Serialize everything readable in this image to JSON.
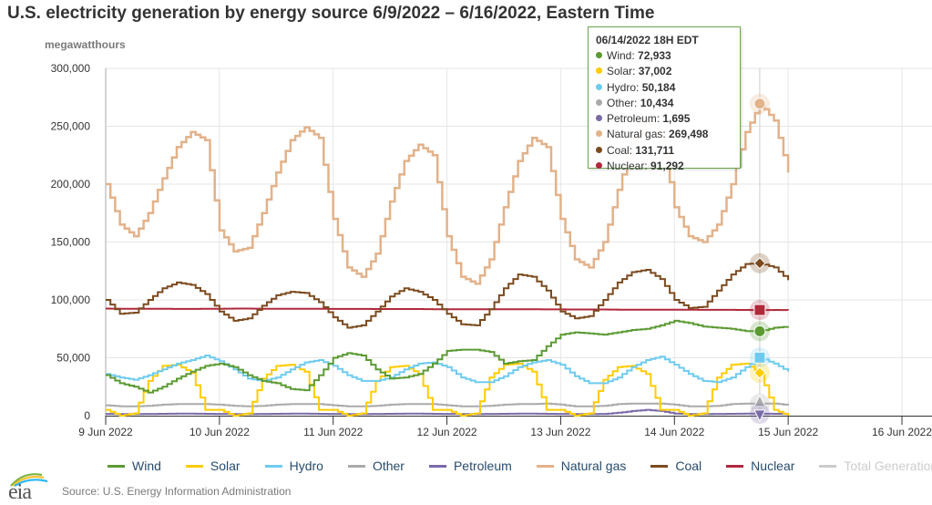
{
  "header": {
    "title": "U.S. electricity generation by energy source 6/9/2022 – 6/16/2022, Eastern Time",
    "unit_label": "megawatthours"
  },
  "tooltip": {
    "heading": "06/14/2022 18H EDT",
    "rows": [
      {
        "label": "Wind",
        "value": "72,933",
        "color": "#5b9a33"
      },
      {
        "label": "Solar",
        "value": "37,002",
        "color": "#ffcc00"
      },
      {
        "label": "Hydro",
        "value": "50,184",
        "color": "#6ecbef"
      },
      {
        "label": "Other",
        "value": "10,434",
        "color": "#aaaaaa"
      },
      {
        "label": "Petroleum",
        "value": "1,695",
        "color": "#7a6aa8"
      },
      {
        "label": "Natural gas",
        "value": "269,498",
        "color": "#e2b28a"
      },
      {
        "label": "Coal",
        "value": "131,711",
        "color": "#7b4a1e"
      },
      {
        "label": "Nuclear",
        "value": "91,292",
        "color": "#b0293b"
      }
    ]
  },
  "legend": [
    {
      "label": "Wind",
      "color": "#5b9a33",
      "active": true
    },
    {
      "label": "Solar",
      "color": "#ffcc00",
      "active": true
    },
    {
      "label": "Hydro",
      "color": "#6ecbef",
      "active": true
    },
    {
      "label": "Other",
      "color": "#aaaaaa",
      "active": true
    },
    {
      "label": "Petroleum",
      "color": "#7a6aa8",
      "active": true
    },
    {
      "label": "Natural gas",
      "color": "#e2b28a",
      "active": true
    },
    {
      "label": "Coal",
      "color": "#7b4a1e",
      "active": true
    },
    {
      "label": "Nuclear",
      "color": "#b0293b",
      "active": true
    },
    {
      "label": "Total Generation",
      "color": "#cccccc",
      "active": false
    }
  ],
  "footer": {
    "logo_text": "eia",
    "source": "Source: U.S. Energy Information Administration"
  },
  "chart_data": {
    "type": "line",
    "title": "U.S. electricity generation by energy source 6/9/2022 – 6/16/2022, Eastern Time",
    "ylabel": "megawatthours",
    "xlabel": "",
    "ylim": [
      0,
      300000
    ],
    "yticks": [
      0,
      50000,
      100000,
      150000,
      200000,
      250000,
      300000
    ],
    "ytick_labels": [
      "0",
      "50,000",
      "100,000",
      "150,000",
      "200,000",
      "250,000",
      "300,000"
    ],
    "xlim_hours": [
      0,
      168
    ],
    "xticks_hours": [
      0,
      24,
      48,
      72,
      96,
      120,
      144,
      168
    ],
    "xtick_labels": [
      "9 Jun 2022",
      "10 Jun 2022",
      "11 Jun 2022",
      "12 Jun 2022",
      "13 Jun 2022",
      "14 Jun 2022",
      "15 Jun 2022",
      "16 Jun 2022"
    ],
    "x_step_hours": 3,
    "x_start": "06/09/2022 00H",
    "grid": true,
    "legend_position": "bottom",
    "step": true,
    "highlight": {
      "hour": 138,
      "label": "06/14/2022 18H EDT"
    },
    "series": [
      {
        "name": "Natural gas",
        "color": "#e2b28a",
        "marker": "circle",
        "values": [
          200000,
          165000,
          155000,
          175000,
          205000,
          232000,
          245000,
          238000,
          160000,
          142000,
          145000,
          175000,
          210000,
          238000,
          249000,
          240000,
          170000,
          128000,
          120000,
          140000,
          185000,
          220000,
          234000,
          225000,
          155000,
          120000,
          114000,
          135000,
          180000,
          220000,
          240000,
          232000,
          170000,
          135000,
          128000,
          150000,
          195000,
          235000,
          255000,
          245000,
          180000,
          155000,
          150000,
          165000,
          200000,
          245000,
          269498,
          255000,
          210000
        ]
      },
      {
        "name": "Coal",
        "color": "#7b4a1e",
        "marker": "diamond",
        "values": [
          100000,
          88000,
          89000,
          100000,
          110000,
          115000,
          113000,
          105000,
          90000,
          82000,
          84000,
          95000,
          104000,
          107000,
          106000,
          98000,
          85000,
          76000,
          78000,
          90000,
          103000,
          110000,
          107000,
          100000,
          88000,
          79000,
          78000,
          92000,
          110000,
          122000,
          120000,
          108000,
          90000,
          84000,
          86000,
          100000,
          115000,
          124000,
          126000,
          118000,
          100000,
          93000,
          94000,
          108000,
          122000,
          131000,
          131711,
          128000,
          117000
        ]
      },
      {
        "name": "Nuclear",
        "color": "#b0293b",
        "marker": "square",
        "values": [
          92500,
          92400,
          92400,
          92300,
          92300,
          92200,
          92200,
          92300,
          92400,
          92500,
          92500,
          92400,
          92300,
          92300,
          92300,
          92300,
          92200,
          92200,
          92200,
          92100,
          92100,
          92100,
          92100,
          92000,
          92000,
          92000,
          91900,
          91900,
          91900,
          91900,
          91900,
          91800,
          91800,
          91700,
          91700,
          91700,
          91600,
          91600,
          91600,
          91500,
          91500,
          91500,
          91400,
          91400,
          91400,
          91300,
          91292,
          91300,
          91200
        ]
      },
      {
        "name": "Wind",
        "color": "#5b9a33",
        "marker": "circle",
        "values": [
          35000,
          28000,
          25000,
          20000,
          25000,
          32000,
          38000,
          43000,
          45000,
          42000,
          35000,
          30000,
          28000,
          23000,
          22000,
          35000,
          50000,
          54000,
          52000,
          40000,
          32000,
          33000,
          36000,
          45000,
          56000,
          57000,
          57000,
          55000,
          45000,
          47000,
          48000,
          60000,
          70000,
          72000,
          71000,
          70000,
          72000,
          74000,
          75000,
          78000,
          82000,
          80000,
          77000,
          76000,
          75000,
          73000,
          72933,
          76000,
          77000
        ]
      },
      {
        "name": "Hydro",
        "color": "#6ecbef",
        "marker": "square",
        "values": [
          36000,
          33000,
          31000,
          35000,
          40000,
          45000,
          48000,
          52000,
          47000,
          40000,
          32000,
          30000,
          33000,
          40000,
          46000,
          48000,
          43000,
          35000,
          30000,
          30000,
          33000,
          40000,
          45000,
          46000,
          42000,
          33000,
          29000,
          29000,
          34000,
          42000,
          46000,
          48000,
          44000,
          34000,
          28000,
          28000,
          33000,
          42000,
          48000,
          51000,
          44000,
          36000,
          30000,
          29000,
          33000,
          42000,
          50184,
          45000,
          38000
        ]
      },
      {
        "name": "Solar",
        "color": "#ffcc00",
        "marker": "diamond",
        "values": [
          5000,
          0,
          2000,
          30000,
          43000,
          44000,
          37000,
          5000,
          5000,
          0,
          2000,
          32000,
          43000,
          44000,
          38000,
          5000,
          5000,
          0,
          2000,
          30000,
          42000,
          43000,
          36000,
          5000,
          5000,
          0,
          2000,
          33000,
          44000,
          45000,
          38000,
          5000,
          5000,
          0,
          2000,
          31000,
          42000,
          43000,
          36000,
          5000,
          5000,
          0,
          2000,
          33000,
          44000,
          45000,
          37002,
          5000,
          0
        ]
      },
      {
        "name": "Other",
        "color": "#aaaaaa",
        "marker": "triangle",
        "values": [
          9000,
          8000,
          8000,
          8500,
          9500,
          10000,
          10000,
          10000,
          9500,
          8500,
          8000,
          8500,
          9500,
          10000,
          10000,
          10000,
          9000,
          8000,
          8000,
          8500,
          9500,
          10000,
          10000,
          10000,
          9000,
          8000,
          8000,
          8500,
          9500,
          10000,
          10000,
          10500,
          9500,
          8000,
          8000,
          8500,
          10000,
          10500,
          10500,
          10500,
          9500,
          8000,
          8000,
          8500,
          10000,
          10500,
          10434,
          10500,
          9000
        ]
      },
      {
        "name": "Petroleum",
        "color": "#7a6aa8",
        "marker": "triangle-down",
        "values": [
          1500,
          1400,
          1400,
          1500,
          1600,
          1700,
          1700,
          1600,
          1500,
          1400,
          1400,
          1500,
          1600,
          1700,
          1700,
          1600,
          1500,
          1400,
          1400,
          1500,
          1600,
          1700,
          1700,
          1600,
          1500,
          1400,
          1400,
          1500,
          1600,
          1700,
          1700,
          1600,
          1500,
          1400,
          1400,
          1500,
          2500,
          4000,
          5000,
          4000,
          1800,
          1400,
          1400,
          1500,
          1600,
          1700,
          1695,
          1600,
          1500
        ]
      }
    ]
  }
}
